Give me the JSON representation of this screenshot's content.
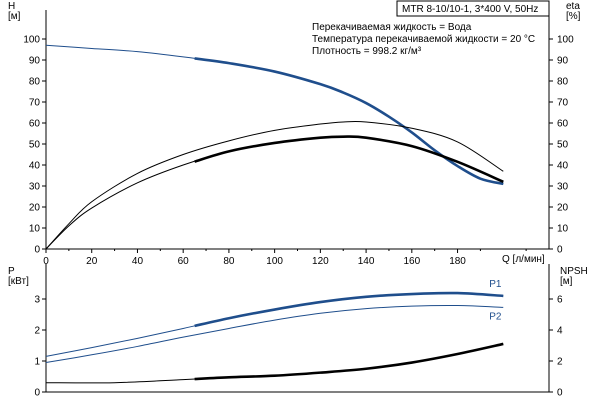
{
  "header": {
    "model_line": "MTR 8-10/10-1, 3*400 V, 50Hz",
    "liquid_line": "Перекачиваемая жидкость = Вода",
    "temperature_line": "Температура перекачиваемой жидкости = 20 °C",
    "density_line": "Плотность = 998.2 кг/м³"
  },
  "colors": {
    "head_curve": "#1f4e8c",
    "power_curve": "#1f4e8c",
    "efficiency_curve": "#000000",
    "npsh_curve": "#000000",
    "axis": "#000000",
    "background": "#ffffff"
  },
  "chart_data": [
    {
      "type": "line",
      "panel": "head-efficiency",
      "xlabel": "Q [л/мин]",
      "ylabel_left": "H\n[м]",
      "ylabel_right": "eta\n[%]",
      "xlim": [
        0,
        220
      ],
      "ylim_left": [
        0,
        110
      ],
      "ylim_right": [
        0,
        110
      ],
      "x_ticks": [
        0,
        20,
        40,
        60,
        80,
        100,
        120,
        140,
        160,
        180
      ],
      "y_ticks": [
        0,
        10,
        20,
        30,
        40,
        50,
        60,
        70,
        80,
        90,
        100
      ],
      "grid": false,
      "series": [
        {
          "key": "head",
          "color": "#1f4e8c",
          "points": [
            [
              0,
              97
            ],
            [
              20,
              95.5
            ],
            [
              40,
              94
            ],
            [
              60,
              91.5
            ],
            [
              80,
              88.5
            ],
            [
              100,
              84.5
            ],
            [
              120,
              78.5
            ],
            [
              130,
              74.5
            ],
            [
              140,
              69.5
            ],
            [
              150,
              63
            ],
            [
              160,
              55.5
            ],
            [
              170,
              47
            ],
            [
              180,
              39.5
            ],
            [
              190,
              33.5
            ],
            [
              200,
              31
            ]
          ],
          "emphasis_from": 65
        },
        {
          "key": "eta-thin",
          "color": "#000000",
          "points": [
            [
              0,
              0
            ],
            [
              10,
              12
            ],
            [
              20,
              22.5
            ],
            [
              40,
              36
            ],
            [
              60,
              45
            ],
            [
              80,
              51.5
            ],
            [
              100,
              56.5
            ],
            [
              120,
              59.5
            ],
            [
              130,
              60.5
            ],
            [
              140,
              60.5
            ],
            [
              160,
              57.5
            ],
            [
              180,
              51
            ],
            [
              200,
              37
            ]
          ],
          "emphasis_from": null
        },
        {
          "key": "eta-lower",
          "color": "#000000",
          "points": [
            [
              0,
              0
            ],
            [
              10,
              11
            ],
            [
              20,
              19.5
            ],
            [
              40,
              31.5
            ],
            [
              60,
              40
            ],
            [
              80,
              46.5
            ],
            [
              100,
              50.5
            ],
            [
              120,
              53
            ],
            [
              130,
              53.5
            ],
            [
              140,
              53
            ],
            [
              160,
              49
            ],
            [
              180,
              41.5
            ],
            [
              200,
              32
            ]
          ],
          "emphasis_from": 65
        }
      ]
    },
    {
      "type": "line",
      "panel": "power-npsh",
      "ylabel_left": "P\n[кВт]",
      "ylabel_right": "NPSH\n[м]",
      "xlim": [
        0,
        220
      ],
      "ylim_left": [
        0,
        4
      ],
      "ylim_right": [
        0,
        8
      ],
      "y_ticks_left": [
        0,
        1,
        2,
        3
      ],
      "y_ticks_right": [
        0,
        2,
        4,
        6
      ],
      "grid": false,
      "series": [
        {
          "key": "p1",
          "name": "P1",
          "color": "#1f4e8c",
          "points": [
            [
              0,
              1.15
            ],
            [
              20,
              1.43
            ],
            [
              40,
              1.73
            ],
            [
              60,
              2.05
            ],
            [
              80,
              2.38
            ],
            [
              100,
              2.66
            ],
            [
              120,
              2.9
            ],
            [
              140,
              3.07
            ],
            [
              160,
              3.16
            ],
            [
              180,
              3.19
            ],
            [
              200,
              3.1
            ]
          ],
          "emphasis_from": 65
        },
        {
          "key": "p2",
          "name": "P2",
          "color": "#1f4e8c",
          "points": [
            [
              0,
              0.95
            ],
            [
              20,
              1.2
            ],
            [
              40,
              1.47
            ],
            [
              60,
              1.77
            ],
            [
              80,
              2.05
            ],
            [
              100,
              2.32
            ],
            [
              120,
              2.54
            ],
            [
              140,
              2.69
            ],
            [
              160,
              2.77
            ],
            [
              180,
              2.79
            ],
            [
              200,
              2.73
            ]
          ],
          "emphasis_from": null
        },
        {
          "key": "npsh",
          "color": "#000000",
          "axis": "right",
          "points": [
            [
              0,
              0.6
            ],
            [
              30,
              0.6
            ],
            [
              60,
              0.8
            ],
            [
              80,
              0.95
            ],
            [
              100,
              1.05
            ],
            [
              120,
              1.25
            ],
            [
              140,
              1.5
            ],
            [
              160,
              1.9
            ],
            [
              180,
              2.45
            ],
            [
              200,
              3.1
            ]
          ],
          "emphasis_from": 65
        }
      ]
    }
  ]
}
